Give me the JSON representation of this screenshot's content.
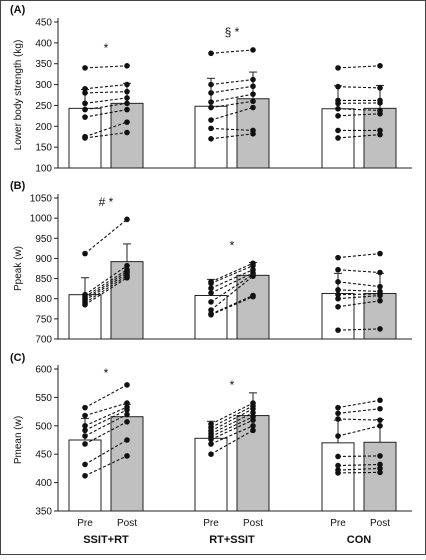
{
  "chart_data": [
    {
      "type": "bar",
      "panel_label": "(A)",
      "ylabel": "Lower body strength (kg)",
      "ylim": [
        100,
        450
      ],
      "yticks": [
        100,
        150,
        200,
        250,
        300,
        350,
        400,
        450
      ],
      "groups": [
        {
          "name": "SSIT+RT",
          "bars": [
            {
              "label": "Pre",
              "value": 243,
              "error": 45
            },
            {
              "label": "Post",
              "value": 255,
              "error": 48
            }
          ],
          "subjects": [
            [
              340,
              345
            ],
            [
              290,
              300
            ],
            [
              280,
              283
            ],
            [
              255,
              268
            ],
            [
              240,
              255
            ],
            [
              222,
              240
            ],
            [
              175,
              210
            ],
            [
              172,
              185
            ]
          ],
          "annotation": "*"
        },
        {
          "name": "RT+SSIT",
          "bars": [
            {
              "label": "Pre",
              "value": 248,
              "error": 67
            },
            {
              "label": "Post",
              "value": 266,
              "error": 64
            }
          ],
          "subjects": [
            [
              375,
              383
            ],
            [
              300,
              312
            ],
            [
              280,
              296
            ],
            [
              258,
              277
            ],
            [
              245,
              260
            ],
            [
              215,
              245
            ],
            [
              195,
              190
            ],
            [
              170,
              182
            ]
          ],
          "annotation": "§ *"
        },
        {
          "name": "CON",
          "bars": [
            {
              "label": "Pre",
              "value": 242,
              "error": 55
            },
            {
              "label": "Post",
              "value": 243,
              "error": 55
            }
          ],
          "subjects": [
            [
              340,
              345
            ],
            [
              295,
              292
            ],
            [
              262,
              262
            ],
            [
              255,
              256
            ],
            [
              242,
              238
            ],
            [
              225,
              230
            ],
            [
              190,
              190
            ],
            [
              172,
              180
            ]
          ],
          "annotation": ""
        }
      ]
    },
    {
      "type": "bar",
      "panel_label": "(B)",
      "ylabel": "Ppeak (w)",
      "ylim": [
        700,
        1050
      ],
      "yticks": [
        700,
        750,
        800,
        850,
        900,
        950,
        1000,
        1050
      ],
      "groups": [
        {
          "name": "SSIT+RT",
          "bars": [
            {
              "label": "Pre",
              "value": 810,
              "error": 42
            },
            {
              "label": "Post",
              "value": 892,
              "error": 44
            }
          ],
          "subjects": [
            [
              912,
              997
            ],
            [
              810,
              882
            ],
            [
              805,
              872
            ],
            [
              800,
              867
            ],
            [
              796,
              862
            ],
            [
              790,
              857
            ],
            [
              785,
              852
            ]
          ],
          "annotation": "# *"
        },
        {
          "name": "RT+SSIT",
          "bars": [
            {
              "label": "Pre",
              "value": 808,
              "error": 40
            },
            {
              "label": "Post",
              "value": 858,
              "error": 32
            }
          ],
          "subjects": [
            [
              842,
              888
            ],
            [
              838,
              882
            ],
            [
              826,
              872
            ],
            [
              814,
              864
            ],
            [
              792,
              860
            ],
            [
              772,
              856
            ],
            [
              762,
              808
            ],
            [
              760,
              805
            ]
          ],
          "annotation": "*"
        },
        {
          "name": "CON",
          "bars": [
            {
              "label": "Pre",
              "value": 813,
              "error": 50
            },
            {
              "label": "Post",
              "value": 813,
              "error": 50
            }
          ],
          "subjects": [
            [
              902,
              912
            ],
            [
              872,
              865
            ],
            [
              842,
              830
            ],
            [
              822,
              818
            ],
            [
              810,
              812
            ],
            [
              800,
              808
            ],
            [
              780,
              795
            ],
            [
              722,
              725
            ]
          ],
          "annotation": ""
        }
      ]
    },
    {
      "type": "bar",
      "panel_label": "(C)",
      "ylabel": "Pmean (w)",
      "ylim": [
        350,
        600
      ],
      "yticks": [
        350,
        400,
        450,
        500,
        550,
        600
      ],
      "groups": [
        {
          "name": "SSIT+RT",
          "bars": [
            {
              "label": "Pre",
              "value": 475,
              "error": 38
            },
            {
              "label": "Post",
              "value": 516,
              "error": 22
            }
          ],
          "subjects": [
            [
              532,
              572
            ],
            [
              518,
              540
            ],
            [
              500,
              533
            ],
            [
              492,
              528
            ],
            [
              482,
              520
            ],
            [
              468,
              507
            ],
            [
              432,
              475
            ],
            [
              412,
              447
            ]
          ],
          "annotation": "*"
        },
        {
          "name": "RT+SSIT",
          "bars": [
            {
              "label": "Pre",
              "value": 478,
              "error": 30
            },
            {
              "label": "Post",
              "value": 518,
              "error": 40
            }
          ],
          "subjects": [
            [
              503,
              540
            ],
            [
              497,
              535
            ],
            [
              491,
              530
            ],
            [
              486,
              523
            ],
            [
              481,
              516
            ],
            [
              476,
              510
            ],
            [
              468,
              500
            ],
            [
              450,
              492
            ]
          ],
          "annotation": "*"
        },
        {
          "name": "CON",
          "bars": [
            {
              "label": "Pre",
              "value": 470,
              "error": 40
            },
            {
              "label": "Post",
              "value": 471,
              "error": 40
            }
          ],
          "subjects": [
            [
              532,
              545
            ],
            [
              522,
              530
            ],
            [
              512,
              510
            ],
            [
              482,
              500
            ],
            [
              446,
              447
            ],
            [
              430,
              432
            ],
            [
              422,
              425
            ],
            [
              417,
              418
            ]
          ],
          "annotation": ""
        }
      ]
    }
  ],
  "colors": {
    "pre_bar": "#ffffff",
    "post_bar": "#c0c0c0",
    "line": "#111111",
    "frame": "#444444"
  }
}
